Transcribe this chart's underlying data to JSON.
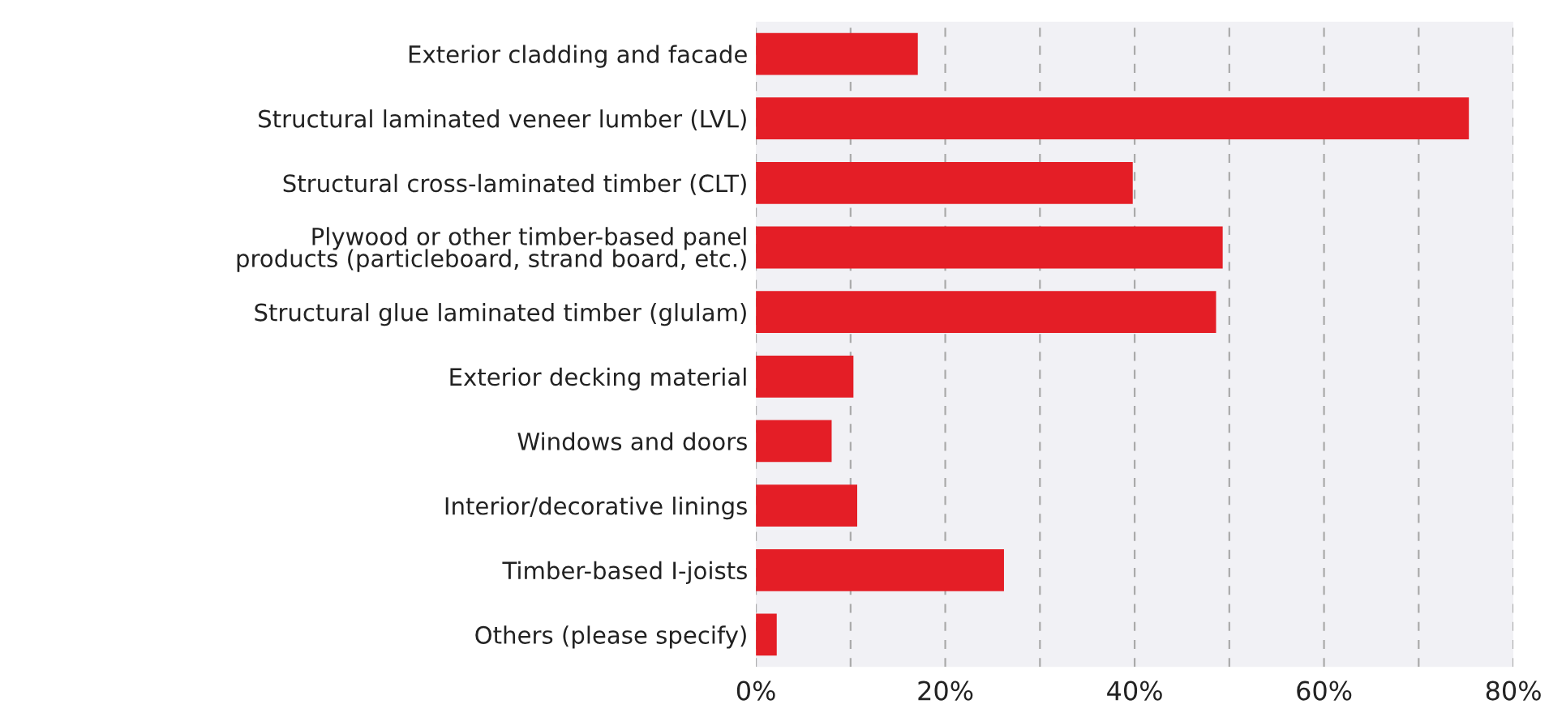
{
  "chart_data": {
    "type": "bar",
    "orientation": "horizontal",
    "categories": [
      "Exterior cladding and facade",
      "Structural laminated veneer lumber (LVL)",
      "Structural cross-laminated timber (CLT)",
      "Plywood or other timber-based panel\nproducts (particleboard, strand board, etc.)",
      "Structural glue laminated timber (glulam)",
      "Exterior decking material",
      "Windows and doors",
      "Interior/decorative linings",
      "Timber-based I-joists",
      "Others (please specify)"
    ],
    "values": [
      17.1,
      75.3,
      39.8,
      49.3,
      48.6,
      10.3,
      8.0,
      10.7,
      26.2,
      2.2
    ],
    "color": "#e41e26",
    "xlim": [
      0,
      80
    ],
    "xticks": [
      {
        "value": 0,
        "label": "0%"
      },
      {
        "value": 10,
        "label": null
      },
      {
        "value": 20,
        "label": "20%"
      },
      {
        "value": 30,
        "label": null
      },
      {
        "value": 40,
        "label": "40%"
      },
      {
        "value": 50,
        "label": null
      },
      {
        "value": 60,
        "label": "60%"
      },
      {
        "value": 70,
        "label": null
      },
      {
        "value": 80,
        "label": "80%"
      }
    ],
    "grid": "x"
  }
}
